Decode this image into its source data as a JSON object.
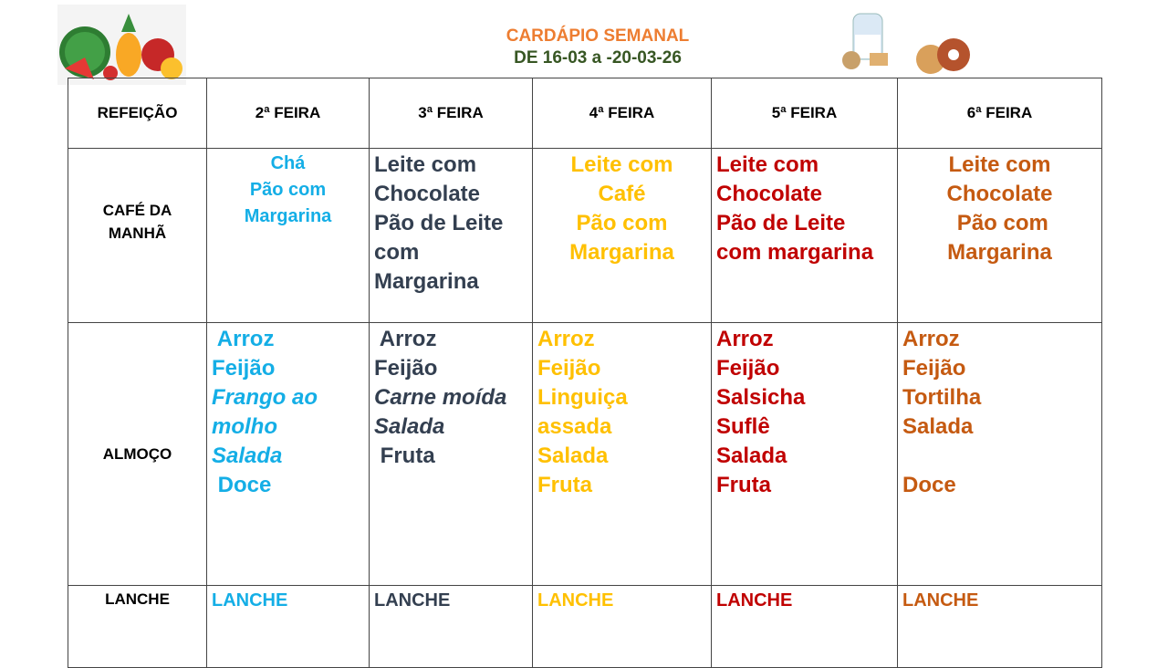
{
  "header": {
    "title": "CARDÁPIO SEMANAL",
    "subtitle": "DE 16-03 a -20-03-26"
  },
  "images": {
    "left": "fruits-illustration",
    "right": "breakfast-illustration"
  },
  "colors": {
    "seg": "#14aee6",
    "ter": "#333f50",
    "qua": "#ffc000",
    "qui": "#c00000",
    "sex": "#c55a11"
  },
  "table": {
    "corner": "REFEIÇÃO",
    "days": [
      "2ª FEIRA",
      "3ª FEIRA",
      "4ª FEIRA",
      "5ª FEIRA",
      "6ª FEIRA"
    ],
    "rows": [
      {
        "label": [
          "CAFÉ DA",
          "MANHÃ"
        ],
        "cells": [
          {
            "align": "center",
            "small": true,
            "lines": [
              {
                "t": "Chá"
              },
              {
                "t": "Pão com"
              },
              {
                "t": "Margarina"
              }
            ]
          },
          {
            "align": "left",
            "lines": [
              {
                "t": "Leite com"
              },
              {
                "t": "Chocolate"
              },
              {
                "t": "Pão de Leite"
              },
              {
                "t": "com"
              },
              {
                "t": "Margarina"
              }
            ]
          },
          {
            "align": "center",
            "lines": [
              {
                "t": "Leite com"
              },
              {
                "t": "Café"
              },
              {
                "t": "Pão com"
              },
              {
                "t": "Margarina"
              }
            ]
          },
          {
            "align": "left",
            "lines": [
              {
                "t": "Leite com"
              },
              {
                "t": "Chocolate"
              },
              {
                "t": "Pão de Leite"
              },
              {
                "t": "com margarina"
              }
            ]
          },
          {
            "align": "center",
            "lines": [
              {
                "t": "Leite com"
              },
              {
                "t": "Chocolate"
              },
              {
                "t": " Pão com"
              },
              {
                "t": "Margarina"
              }
            ]
          }
        ]
      },
      {
        "label": [
          "ALMOÇO"
        ],
        "cells": [
          {
            "align": "left",
            "lines": [
              {
                "t": " Arroz"
              },
              {
                "t": "Feijão"
              },
              {
                "t": "Frango ao",
                "i": true
              },
              {
                "t": "molho",
                "i": true
              },
              {
                "t": "Salada",
                "i": true
              },
              {
                "t": " Doce"
              }
            ]
          },
          {
            "align": "left",
            "lines": [
              {
                "t": " Arroz"
              },
              {
                "t": "Feijão"
              },
              {
                "t": "Carne moída",
                "i": true
              },
              {
                "t": "Salada",
                "i": true
              },
              {
                "t": " Fruta"
              }
            ]
          },
          {
            "align": "left",
            "lines": [
              {
                "t": "Arroz"
              },
              {
                "t": "Feijão"
              },
              {
                "t": "Linguiça"
              },
              {
                "t": "assada"
              },
              {
                "t": "Salada"
              },
              {
                "t": "Fruta"
              }
            ]
          },
          {
            "align": "left",
            "lines": [
              {
                "t": "Arroz"
              },
              {
                "t": "Feijão"
              },
              {
                "t": "Salsicha"
              },
              {
                "t": "Suflê"
              },
              {
                "t": "Salada"
              },
              {
                "t": "Fruta"
              }
            ]
          },
          {
            "align": "left",
            "lines": [
              {
                "t": "Arroz"
              },
              {
                "t": "Feijão"
              },
              {
                "t": "Tortilha"
              },
              {
                "t": "Salada"
              },
              {
                "t": " "
              },
              {
                "t": "Doce"
              }
            ]
          }
        ]
      },
      {
        "label": [
          "LANCHE"
        ],
        "cells": [
          {
            "align": "left",
            "small": true,
            "lines": [
              {
                "t": "LANCHE"
              }
            ]
          },
          {
            "align": "left",
            "small": true,
            "lines": [
              {
                "t": "LANCHE"
              }
            ]
          },
          {
            "align": "left",
            "small": true,
            "lines": [
              {
                "t": "LANCHE"
              }
            ]
          },
          {
            "align": "left",
            "small": true,
            "lines": [
              {
                "t": "LANCHE"
              }
            ]
          },
          {
            "align": "left",
            "small": true,
            "lines": [
              {
                "t": "LANCHE"
              }
            ]
          }
        ]
      }
    ]
  }
}
